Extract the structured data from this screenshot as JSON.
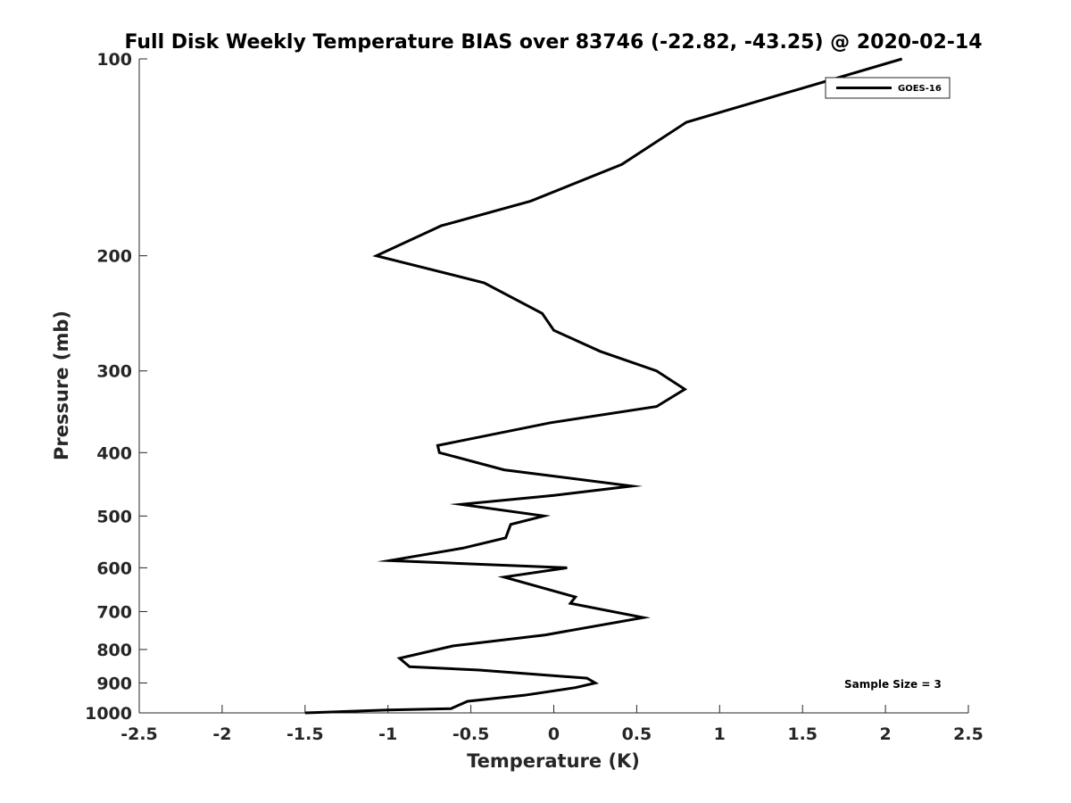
{
  "chart_data": {
    "type": "line",
    "title": "Full Disk Weekly Temperature BIAS over 83746 (-22.82, -43.25) @ 2020-02-14",
    "xlabel": "Temperature (K)",
    "ylabel": "Pressure (mb)",
    "xlim": [
      -2.5,
      2.5
    ],
    "ylim": [
      100,
      1000
    ],
    "y_scale": "log",
    "y_reversed": true,
    "x_ticks": [
      -2.5,
      -2,
      -1.5,
      -1,
      -0.5,
      0,
      0.5,
      1,
      1.5,
      2,
      2.5
    ],
    "x_tick_labels": [
      "-2.5",
      "-2",
      "-1.5",
      "-1",
      "-0.5",
      "0",
      "0.5",
      "1",
      "1.5",
      "2",
      "2.5"
    ],
    "y_ticks": [
      100,
      200,
      300,
      400,
      500,
      600,
      700,
      800,
      900,
      1000
    ],
    "y_tick_labels": [
      "100",
      "200",
      "300",
      "400",
      "500",
      "600",
      "700",
      "800",
      "900",
      "1000"
    ],
    "grid": false,
    "legend_position": "top-right",
    "annotation": "Sample Size = 3",
    "series": [
      {
        "name": "GOES-16",
        "color": "#000000",
        "points": [
          {
            "x": 2.1,
            "y": 100
          },
          {
            "x": 0.8,
            "y": 125
          },
          {
            "x": 0.41,
            "y": 145
          },
          {
            "x": -0.14,
            "y": 165
          },
          {
            "x": -0.68,
            "y": 180
          },
          {
            "x": -1.07,
            "y": 200
          },
          {
            "x": -0.42,
            "y": 220
          },
          {
            "x": -0.07,
            "y": 245
          },
          {
            "x": 0.0,
            "y": 260
          },
          {
            "x": 0.28,
            "y": 280
          },
          {
            "x": 0.62,
            "y": 300
          },
          {
            "x": 0.79,
            "y": 320
          },
          {
            "x": 0.62,
            "y": 340
          },
          {
            "x": -0.02,
            "y": 360
          },
          {
            "x": -0.7,
            "y": 390
          },
          {
            "x": -0.69,
            "y": 400
          },
          {
            "x": -0.3,
            "y": 425
          },
          {
            "x": 0.47,
            "y": 450
          },
          {
            "x": 0.0,
            "y": 465
          },
          {
            "x": -0.56,
            "y": 480
          },
          {
            "x": -0.06,
            "y": 500
          },
          {
            "x": -0.26,
            "y": 515
          },
          {
            "x": -0.29,
            "y": 540
          },
          {
            "x": -0.55,
            "y": 560
          },
          {
            "x": -0.99,
            "y": 585
          },
          {
            "x": 0.08,
            "y": 600
          },
          {
            "x": -0.3,
            "y": 620
          },
          {
            "x": 0.13,
            "y": 665
          },
          {
            "x": 0.1,
            "y": 680
          },
          {
            "x": 0.54,
            "y": 715
          },
          {
            "x": -0.05,
            "y": 760
          },
          {
            "x": -0.61,
            "y": 790
          },
          {
            "x": -0.93,
            "y": 825
          },
          {
            "x": -0.87,
            "y": 850
          },
          {
            "x": -0.45,
            "y": 860
          },
          {
            "x": 0.2,
            "y": 885
          },
          {
            "x": 0.25,
            "y": 900
          },
          {
            "x": 0.13,
            "y": 915
          },
          {
            "x": -0.18,
            "y": 940
          },
          {
            "x": -0.52,
            "y": 960
          },
          {
            "x": -0.62,
            "y": 985
          },
          {
            "x": -1.0,
            "y": 990
          },
          {
            "x": -1.5,
            "y": 1000
          }
        ]
      }
    ]
  }
}
